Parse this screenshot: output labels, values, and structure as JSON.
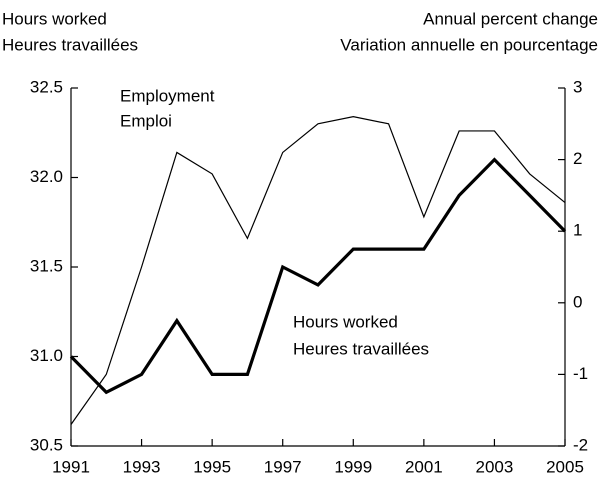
{
  "chart_data": {
    "type": "line",
    "ylabel": [
      "Hours worked",
      "Heures travaillées"
    ],
    "y2label": [
      "Annual percent change",
      "Variation annuelle en pourcentage"
    ],
    "x": [
      1991,
      1992,
      1993,
      1994,
      1995,
      1996,
      1997,
      1998,
      1999,
      2000,
      2001,
      2002,
      2003,
      2004,
      2005
    ],
    "xlim": [
      1991,
      2005
    ],
    "xticks": [
      1991,
      1993,
      1995,
      1997,
      1999,
      2001,
      2003,
      2005
    ],
    "ylim": [
      30.5,
      32.5
    ],
    "yticks": [
      30.5,
      {
        "value": 31,
        "label": "31.0"
      },
      31.5,
      {
        "value": 32,
        "label": "32.0"
      },
      32.5
    ],
    "y2lim": [
      -2,
      3
    ],
    "y2ticks": [
      -2,
      -1,
      0,
      1,
      2,
      3
    ],
    "grid": false,
    "series": [
      {
        "name": "Employment",
        "name_fr": "Emploi",
        "color": "#000000",
        "width": 1.2,
        "axis": "y2",
        "values": [
          -1.7,
          -1.0,
          0.5,
          2.1,
          1.8,
          0.9,
          2.1,
          2.5,
          2.6,
          2.5,
          1.2,
          2.4,
          2.4,
          1.8,
          1.4
        ]
      },
      {
        "name": "Hours worked",
        "name_fr": "Heures travaillées",
        "color": "#000000",
        "width": 3.2,
        "axis": "y",
        "values": [
          31.0,
          30.8,
          30.9,
          31.2,
          30.9,
          30.9,
          31.5,
          31.4,
          31.6,
          31.6,
          31.6,
          31.9,
          32.1,
          31.9,
          31.7
        ]
      }
    ]
  }
}
